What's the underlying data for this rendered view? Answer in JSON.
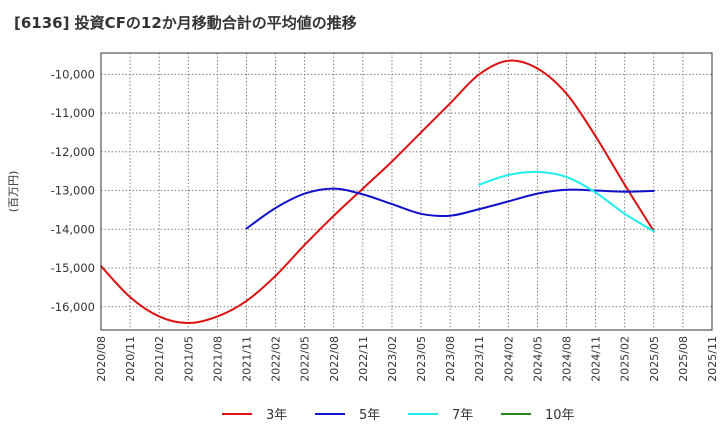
{
  "chart_data": {
    "type": "line",
    "title": "[6136]  投資CFの12か月移動合計の平均値の推移",
    "ylabel": "(百万円)",
    "xlabel": "",
    "ylim": [
      -16600,
      -9450
    ],
    "grid": true,
    "legend_position": "bottom",
    "x_ticks": [
      "2020/08",
      "2020/11",
      "2021/02",
      "2021/05",
      "2021/08",
      "2021/11",
      "2022/02",
      "2022/05",
      "2022/08",
      "2022/11",
      "2023/02",
      "2023/05",
      "2023/08",
      "2023/11",
      "2024/02",
      "2024/05",
      "2024/08",
      "2024/11",
      "2025/02",
      "2025/05",
      "2025/08",
      "2025/11"
    ],
    "y_ticks": [
      -10000,
      -11000,
      -12000,
      -13000,
      -14000,
      -15000,
      -16000
    ],
    "y_tick_labels": [
      "-10,000",
      "-11,000",
      "-12,000",
      "-13,000",
      "-14,000",
      "-15,000",
      "-16,000"
    ],
    "series": [
      {
        "name": "3年",
        "color": "#dd1111",
        "points": [
          [
            "2020/08",
            -14950
          ],
          [
            "2020/11",
            -15750
          ],
          [
            "2021/02",
            -16250
          ],
          [
            "2021/05",
            -16420
          ],
          [
            "2021/08",
            -16250
          ],
          [
            "2021/11",
            -15850
          ],
          [
            "2022/02",
            -15200
          ],
          [
            "2022/05",
            -14400
          ],
          [
            "2022/08",
            -13650
          ],
          [
            "2022/11",
            -12950
          ],
          [
            "2023/02",
            -12250
          ],
          [
            "2023/05",
            -11500
          ],
          [
            "2023/08",
            -10750
          ],
          [
            "2023/11",
            -10000
          ],
          [
            "2024/02",
            -9650
          ],
          [
            "2024/05",
            -9850
          ],
          [
            "2024/08",
            -10500
          ],
          [
            "2024/11",
            -11600
          ],
          [
            "2025/02",
            -12850
          ],
          [
            "2025/05",
            -14050
          ]
        ]
      },
      {
        "name": "5年",
        "color": "#1111cc",
        "points": [
          [
            "2021/11",
            -13980
          ],
          [
            "2022/02",
            -13450
          ],
          [
            "2022/05",
            -13080
          ],
          [
            "2022/08",
            -12950
          ],
          [
            "2022/11",
            -13100
          ],
          [
            "2023/02",
            -13350
          ],
          [
            "2023/05",
            -13600
          ],
          [
            "2023/08",
            -13650
          ],
          [
            "2023/11",
            -13480
          ],
          [
            "2024/02",
            -13280
          ],
          [
            "2024/05",
            -13080
          ],
          [
            "2024/08",
            -12980
          ],
          [
            "2024/11",
            -13000
          ],
          [
            "2025/02",
            -13030
          ],
          [
            "2025/05",
            -13010
          ]
        ]
      },
      {
        "name": "7年",
        "color": "#22eeee",
        "points": [
          [
            "2023/11",
            -12850
          ],
          [
            "2024/02",
            -12600
          ],
          [
            "2024/05",
            -12520
          ],
          [
            "2024/08",
            -12650
          ],
          [
            "2024/11",
            -13050
          ],
          [
            "2025/02",
            -13600
          ],
          [
            "2025/05",
            -14050
          ]
        ]
      },
      {
        "name": "10年",
        "color": "#228822",
        "points": []
      }
    ]
  }
}
